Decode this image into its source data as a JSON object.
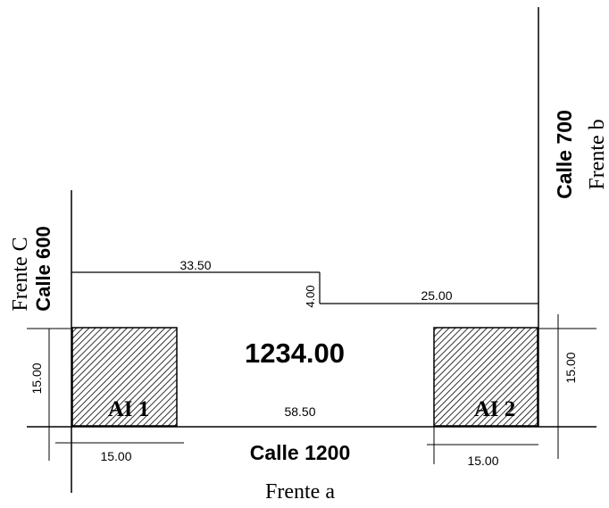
{
  "streets": {
    "bottom": "Calle 1200",
    "left": "Calle 600",
    "right": "Calle 700"
  },
  "fronts": {
    "a": "Frente a",
    "b": "Frente b",
    "c": "Frente C"
  },
  "area": "1234.00",
  "dimensions": {
    "top_segment": "33.50",
    "step": "4.00",
    "right_segment": "25.00",
    "base": "58.50",
    "ai1_width": "15.00",
    "ai1_height": "15.00",
    "ai2_width": "15.00",
    "ai2_height": "15.00"
  },
  "zones": {
    "ai1": "AI 1",
    "ai2": "AI 2"
  }
}
